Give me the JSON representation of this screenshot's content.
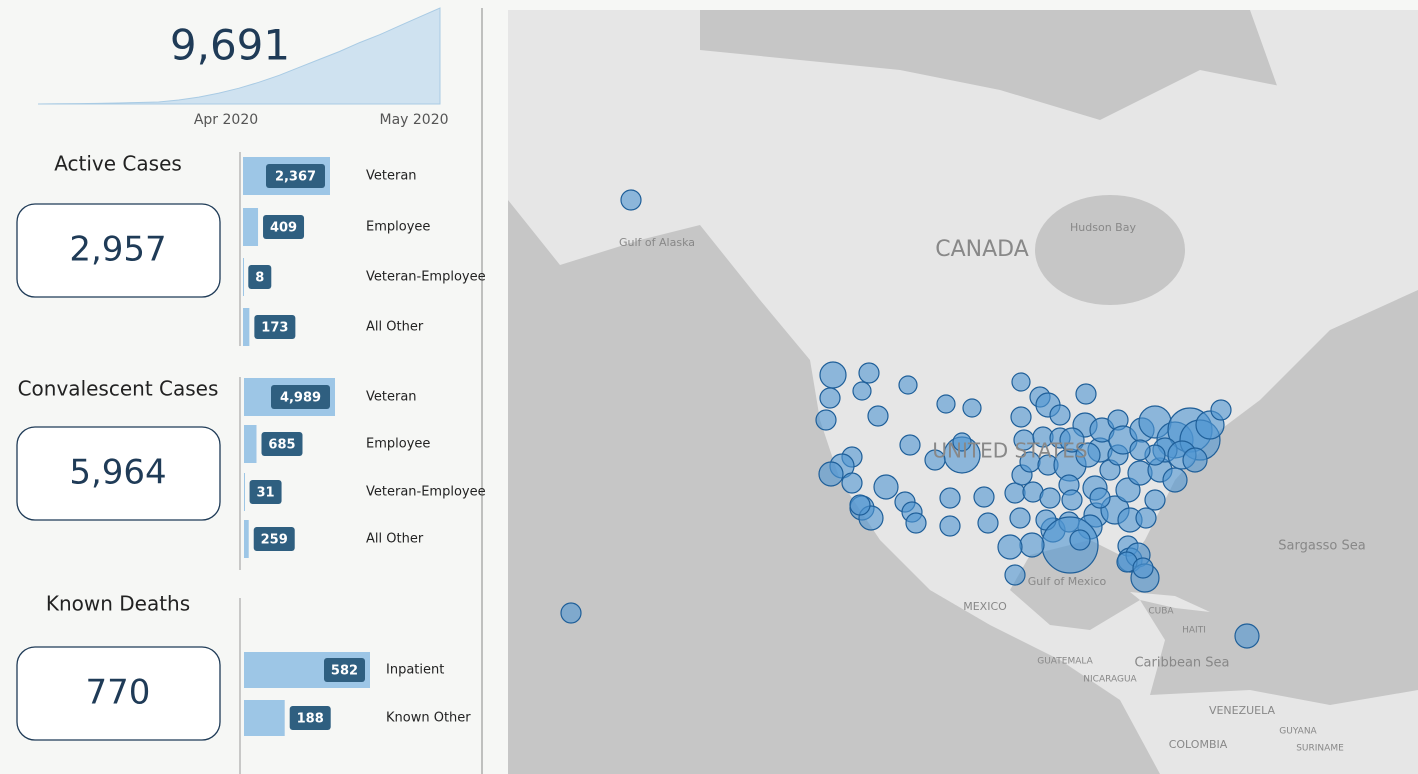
{
  "summary": {
    "total": "9,691",
    "trend": {
      "type": "area",
      "values": [
        0,
        20,
        40,
        60,
        100,
        150,
        200,
        400,
        700,
        1100,
        1600,
        2200,
        2900,
        3700,
        4500,
        5300,
        6200,
        7000,
        7900,
        8800,
        9691
      ],
      "x_labels": [
        "Apr 2020",
        "May 2020"
      ]
    }
  },
  "panels": [
    {
      "title": "Active Cases",
      "total": "2,957",
      "categories": [
        "Veteran",
        "Employee",
        "Veteran-Employee",
        "All Other"
      ],
      "values": [
        2367,
        409,
        8,
        173
      ],
      "value_labels": [
        "2,367",
        "409",
        "8",
        "173"
      ]
    },
    {
      "title": "Convalescent Cases",
      "total": "5,964",
      "categories": [
        "Veteran",
        "Employee",
        "Veteran-Employee",
        "All Other"
      ],
      "values": [
        4989,
        685,
        31,
        259
      ],
      "value_labels": [
        "4,989",
        "685",
        "31",
        "259"
      ]
    },
    {
      "title": "Known Deaths",
      "total": "770",
      "categories": [
        "Inpatient",
        "Known Other"
      ],
      "values": [
        582,
        188
      ],
      "value_labels": [
        "582",
        "188"
      ]
    }
  ],
  "map": {
    "labels": [
      "CANADA",
      "Hudson Bay",
      "Gulf of Alaska",
      "UNITED STATES",
      "Gulf of Mexico",
      "MEXICO",
      "Sargasso Sea",
      "CUBA",
      "HAITI",
      "GUATEMALA",
      "NICARAGUA",
      "Caribbean Sea",
      "VENEZUELA",
      "GUYANA",
      "SURINAME",
      "COLOMBIA"
    ]
  }
}
